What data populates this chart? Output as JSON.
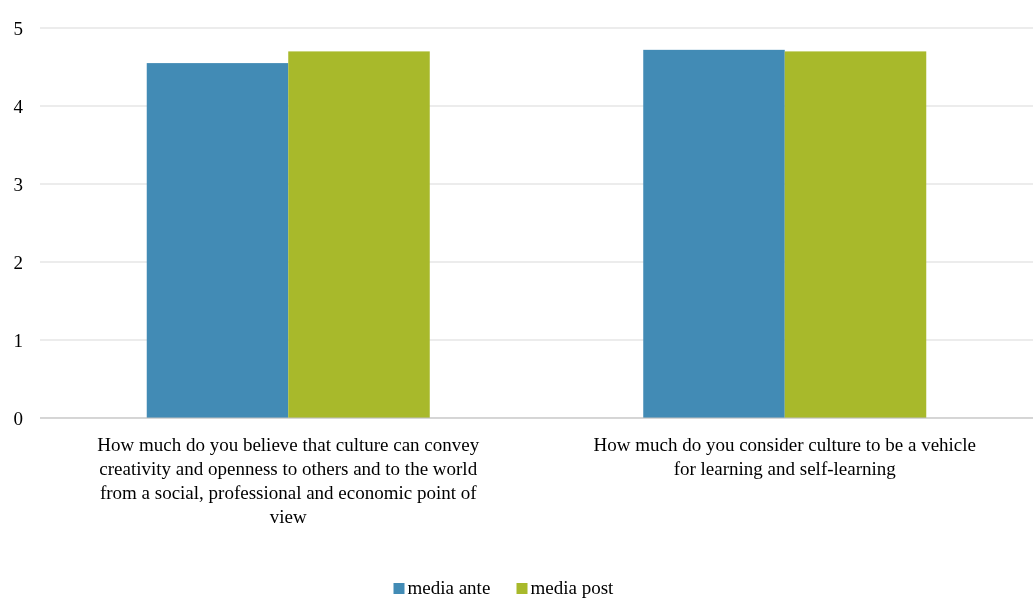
{
  "chart_data": {
    "type": "bar",
    "categories": [
      "How much do you believe that culture can convey creativity and openness to others and to the world from a social, professional and economic point of view",
      "How much do you consider culture to be a vehicle for learning and self-learning"
    ],
    "series": [
      {
        "name": "media ante",
        "color": "#428bb5",
        "values": [
          4.55,
          4.72
        ]
      },
      {
        "name": "media post",
        "color": "#a8b92b",
        "values": [
          4.7,
          4.7
        ]
      }
    ],
    "ylim": [
      0,
      5
    ],
    "yticks": [
      0,
      1,
      2,
      3,
      4,
      5
    ],
    "grid": "y",
    "legend": "bottom"
  }
}
